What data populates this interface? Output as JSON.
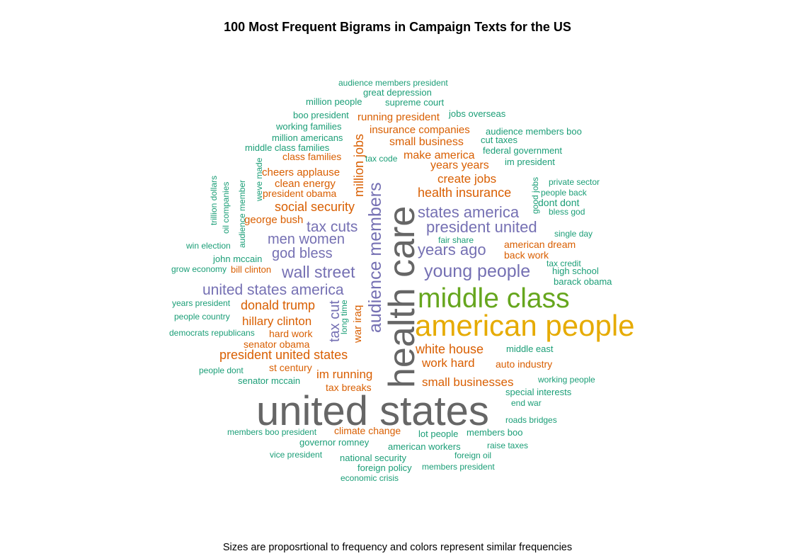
{
  "title": "100 Most Frequent Bigrams in Campaign Texts for the US",
  "caption": "Sizes are proposrtional to frequency and colors represent similar frequencies",
  "palette": {
    "teal": "#1b9e77",
    "orange": "#d95f02",
    "purple": "#7570b3",
    "green": "#66a61e",
    "gold": "#e6ab02",
    "gray": "#666666"
  },
  "chart_data": {
    "type": "wordcloud",
    "title": "100 Most Frequent Bigrams in Campaign Texts for the US",
    "note": "Sizes are proposrtional to frequency and colors represent similar frequencies",
    "words": [
      {
        "text": "united states",
        "color_group": "gray"
      },
      {
        "text": "health care",
        "color_group": "gray"
      },
      {
        "text": "american people",
        "color_group": "gold"
      },
      {
        "text": "middle class",
        "color_group": "green"
      },
      {
        "text": "audience members",
        "color_group": "purple"
      },
      {
        "text": "young people",
        "color_group": "purple"
      },
      {
        "text": "wall street",
        "color_group": "purple"
      },
      {
        "text": "united states america",
        "color_group": "purple"
      },
      {
        "text": "president united",
        "color_group": "purple"
      },
      {
        "text": "states america",
        "color_group": "purple"
      },
      {
        "text": "years ago",
        "color_group": "purple"
      },
      {
        "text": "tax cuts",
        "color_group": "purple"
      },
      {
        "text": "men women",
        "color_group": "purple"
      },
      {
        "text": "god bless",
        "color_group": "purple"
      },
      {
        "text": "tax cut",
        "color_group": "purple"
      },
      {
        "text": "million jobs",
        "color_group": "orange"
      },
      {
        "text": "president united states",
        "color_group": "orange"
      },
      {
        "text": "social security",
        "color_group": "orange"
      },
      {
        "text": "health insurance",
        "color_group": "orange"
      },
      {
        "text": "donald trump",
        "color_group": "orange"
      },
      {
        "text": "hillary clinton",
        "color_group": "orange"
      },
      {
        "text": "white house",
        "color_group": "orange"
      },
      {
        "text": "small businesses",
        "color_group": "orange"
      },
      {
        "text": "work hard",
        "color_group": "orange"
      },
      {
        "text": "im running",
        "color_group": "orange"
      },
      {
        "text": "create jobs",
        "color_group": "orange"
      },
      {
        "text": "small business",
        "color_group": "orange"
      },
      {
        "text": "years years",
        "color_group": "orange"
      },
      {
        "text": "make america",
        "color_group": "orange"
      },
      {
        "text": "insurance companies",
        "color_group": "orange"
      },
      {
        "text": "running president",
        "color_group": "orange"
      },
      {
        "text": "war iraq",
        "color_group": "orange"
      },
      {
        "text": "cheers applause",
        "color_group": "orange"
      },
      {
        "text": "clean energy",
        "color_group": "orange"
      },
      {
        "text": "george bush",
        "color_group": "orange"
      },
      {
        "text": "hard work",
        "color_group": "orange"
      },
      {
        "text": "senator obama",
        "color_group": "orange"
      },
      {
        "text": "climate change",
        "color_group": "orange"
      },
      {
        "text": "auto industry",
        "color_group": "orange"
      },
      {
        "text": "tax breaks",
        "color_group": "orange"
      },
      {
        "text": "american dream",
        "color_group": "orange"
      },
      {
        "text": "back work",
        "color_group": "orange"
      },
      {
        "text": "class families",
        "color_group": "orange"
      },
      {
        "text": "president obama",
        "color_group": "orange"
      },
      {
        "text": "st century",
        "color_group": "orange"
      },
      {
        "text": "bill clinton",
        "color_group": "orange"
      },
      {
        "text": "audience members president",
        "color_group": "teal"
      },
      {
        "text": "great depression",
        "color_group": "teal"
      },
      {
        "text": "million people",
        "color_group": "teal"
      },
      {
        "text": "supreme court",
        "color_group": "teal"
      },
      {
        "text": "boo president",
        "color_group": "teal"
      },
      {
        "text": "jobs overseas",
        "color_group": "teal"
      },
      {
        "text": "working families",
        "color_group": "teal"
      },
      {
        "text": "audience members boo",
        "color_group": "teal"
      },
      {
        "text": "million americans",
        "color_group": "teal"
      },
      {
        "text": "cut taxes",
        "color_group": "teal"
      },
      {
        "text": "middle class families",
        "color_group": "teal"
      },
      {
        "text": "federal government",
        "color_group": "teal"
      },
      {
        "text": "tax code",
        "color_group": "teal"
      },
      {
        "text": "im president",
        "color_group": "teal"
      },
      {
        "text": "private sector",
        "color_group": "teal"
      },
      {
        "text": "people back",
        "color_group": "teal"
      },
      {
        "text": "dont dont",
        "color_group": "teal"
      },
      {
        "text": "bless god",
        "color_group": "teal"
      },
      {
        "text": "single day",
        "color_group": "teal"
      },
      {
        "text": "fair share",
        "color_group": "teal"
      },
      {
        "text": "win election",
        "color_group": "teal"
      },
      {
        "text": "john mccain",
        "color_group": "teal"
      },
      {
        "text": "grow economy",
        "color_group": "teal"
      },
      {
        "text": "tax credit",
        "color_group": "teal"
      },
      {
        "text": "high school",
        "color_group": "teal"
      },
      {
        "text": "barack obama",
        "color_group": "teal"
      },
      {
        "text": "years president",
        "color_group": "teal"
      },
      {
        "text": "people country",
        "color_group": "teal"
      },
      {
        "text": "democrats republicans",
        "color_group": "teal"
      },
      {
        "text": "middle east",
        "color_group": "teal"
      },
      {
        "text": "people dont",
        "color_group": "teal"
      },
      {
        "text": "senator mccain",
        "color_group": "teal"
      },
      {
        "text": "working people",
        "color_group": "teal"
      },
      {
        "text": "special interests",
        "color_group": "teal"
      },
      {
        "text": "end war",
        "color_group": "teal"
      },
      {
        "text": "roads bridges",
        "color_group": "teal"
      },
      {
        "text": "members boo president",
        "color_group": "teal"
      },
      {
        "text": "lot people",
        "color_group": "teal"
      },
      {
        "text": "members boo",
        "color_group": "teal"
      },
      {
        "text": "governor romney",
        "color_group": "teal"
      },
      {
        "text": "american workers",
        "color_group": "teal"
      },
      {
        "text": "raise taxes",
        "color_group": "teal"
      },
      {
        "text": "vice president",
        "color_group": "teal"
      },
      {
        "text": "national security",
        "color_group": "teal"
      },
      {
        "text": "foreign oil",
        "color_group": "teal"
      },
      {
        "text": "foreign policy",
        "color_group": "teal"
      },
      {
        "text": "members president",
        "color_group": "teal"
      },
      {
        "text": "economic crisis",
        "color_group": "teal"
      },
      {
        "text": "trillion dollars",
        "color_group": "teal"
      },
      {
        "text": "oil companies",
        "color_group": "teal"
      },
      {
        "text": "audience member",
        "color_group": "teal"
      },
      {
        "text": "weve made",
        "color_group": "teal"
      },
      {
        "text": "long time",
        "color_group": "teal"
      },
      {
        "text": "good jobs",
        "color_group": "teal"
      }
    ]
  }
}
